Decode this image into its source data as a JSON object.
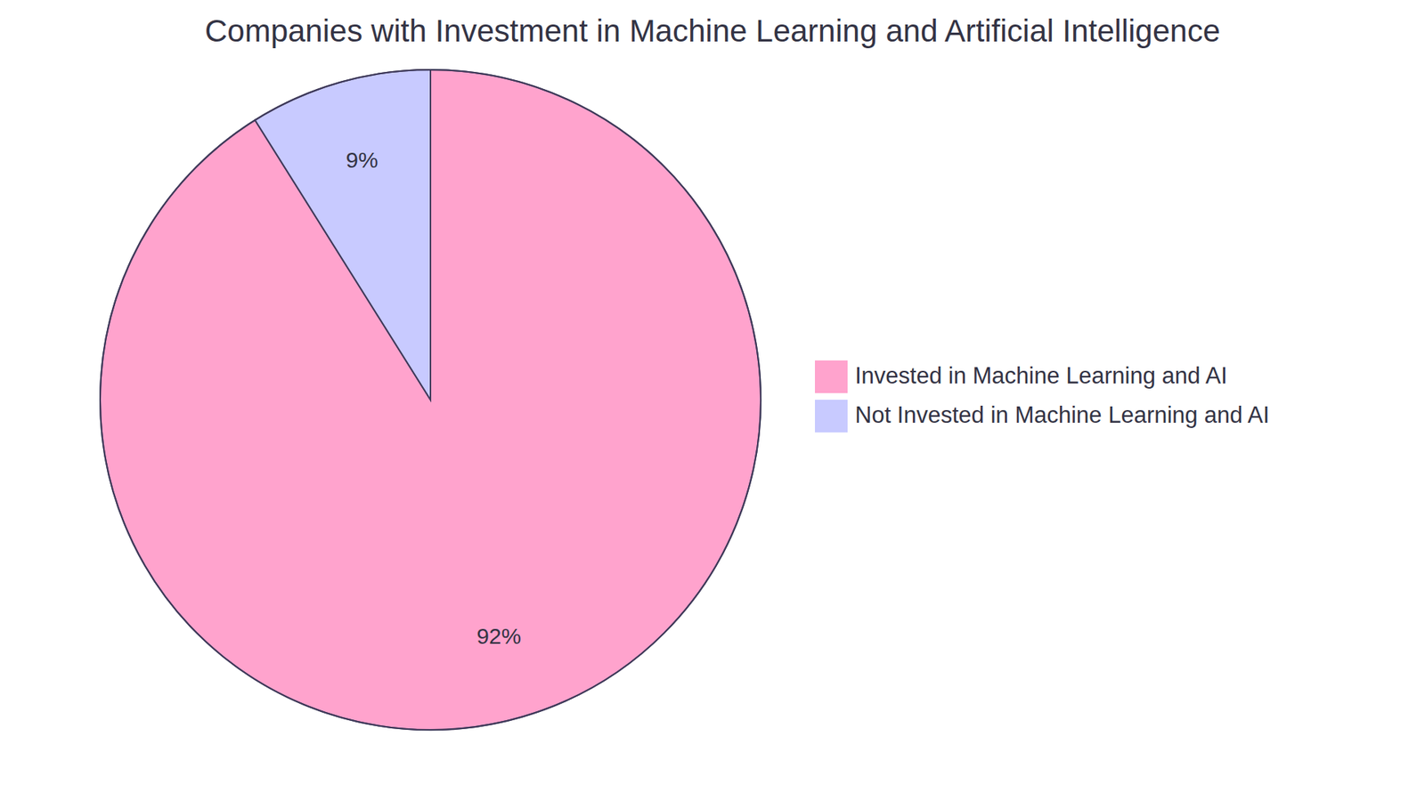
{
  "chart_data": {
    "type": "pie",
    "title": "Companies with Investment in Machine Learning and Artificial Intelligence",
    "categories": [
      "Invested in Machine Learning and AI",
      "Not Invested in Machine Learning and AI"
    ],
    "values": [
      92,
      9
    ],
    "value_labels": [
      "92%",
      "9%"
    ],
    "colors": [
      "#ffa3cd",
      "#c8caff"
    ],
    "data_labels": true,
    "legend": "right"
  }
}
